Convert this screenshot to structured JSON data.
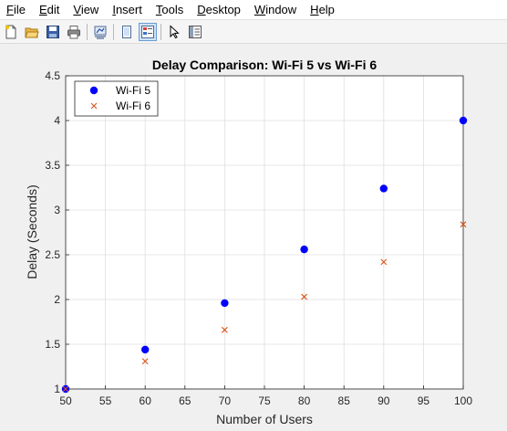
{
  "menubar": {
    "items": [
      {
        "label": "File",
        "acc": "F",
        "rest": "ile"
      },
      {
        "label": "Edit",
        "acc": "E",
        "rest": "dit"
      },
      {
        "label": "View",
        "acc": "V",
        "rest": "iew"
      },
      {
        "label": "Insert",
        "acc": "I",
        "rest": "nsert"
      },
      {
        "label": "Tools",
        "acc": "T",
        "rest": "ools"
      },
      {
        "label": "Desktop",
        "acc": "D",
        "rest": "esktop"
      },
      {
        "label": "Window",
        "acc": "W",
        "rest": "indow"
      },
      {
        "label": "Help",
        "acc": "H",
        "rest": "elp"
      }
    ]
  },
  "toolbar": {
    "icons": [
      "new-figure-icon",
      "open-file-icon",
      "save-icon",
      "print-icon",
      "link-plot-icon",
      "hide-plot-tools-icon",
      "show-plot-tools-icon",
      "edit-plot-arrow-icon",
      "property-inspector-icon"
    ]
  },
  "chart_data": {
    "type": "scatter",
    "title": "Delay Comparison: Wi-Fi 5 vs Wi-Fi 6",
    "xlabel": "Number of Users",
    "ylabel": "Delay (Seconds)",
    "xlim": [
      50,
      100
    ],
    "ylim": [
      1,
      4.5
    ],
    "xticks": [
      50,
      55,
      60,
      65,
      70,
      75,
      80,
      85,
      90,
      95,
      100
    ],
    "yticks": [
      1,
      1.5,
      2,
      2.5,
      3,
      3.5,
      4,
      4.5
    ],
    "ytick_labels": [
      "1",
      "1.5",
      "2",
      "2.5",
      "3",
      "3.5",
      "4",
      "4.5"
    ],
    "grid": true,
    "legend_position": "top-left",
    "series": [
      {
        "name": "Wi-Fi 5",
        "marker": "filled-circle",
        "color": "#0000ff",
        "x": [
          50,
          60,
          70,
          80,
          90,
          100
        ],
        "y": [
          1.0,
          1.44,
          1.96,
          2.56,
          3.24,
          4.0
        ]
      },
      {
        "name": "Wi-Fi 6",
        "marker": "cross",
        "color": "#d95319",
        "x": [
          50,
          60,
          70,
          80,
          90,
          100
        ],
        "y": [
          1.0,
          1.31,
          1.66,
          2.03,
          2.42,
          2.84
        ]
      }
    ]
  }
}
